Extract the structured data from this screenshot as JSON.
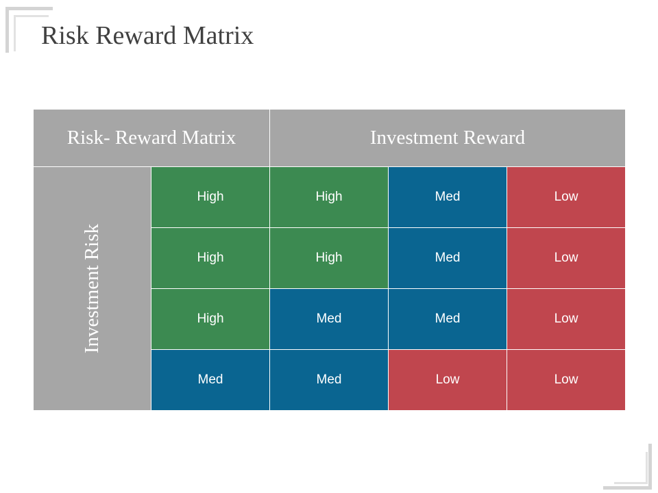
{
  "title": "Risk Reward Matrix",
  "matrix": {
    "header_left": "Risk- Reward Matrix",
    "header_right": "Investment Reward",
    "row_axis_label": "Investment Risk",
    "rows": [
      [
        "High",
        "High",
        "Med",
        "Low"
      ],
      [
        "High",
        "High",
        "Med",
        "Low"
      ],
      [
        "High",
        "Med",
        "Med",
        "Low"
      ],
      [
        "Med",
        "Med",
        "Low",
        "Low"
      ]
    ]
  },
  "colors": {
    "High": "#3c8a51",
    "Med": "#0a6591",
    "Low": "#c0464e",
    "header": "#a6a6a6"
  }
}
